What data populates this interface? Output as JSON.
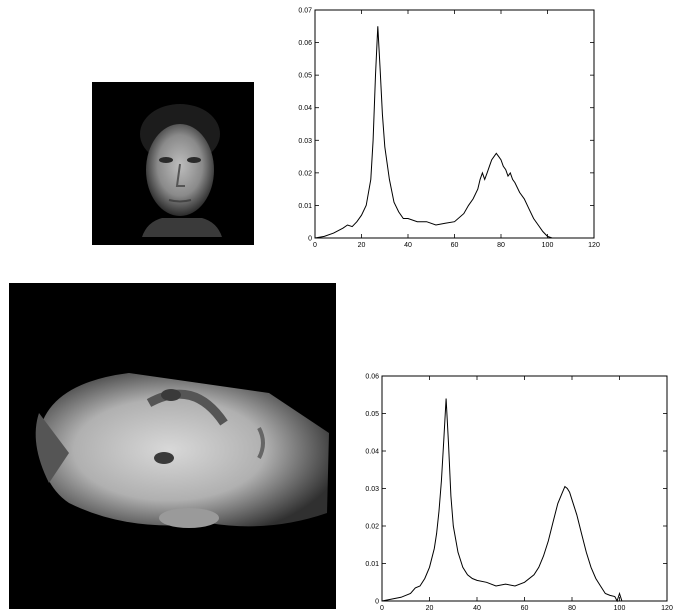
{
  "chart_data": [
    {
      "type": "line",
      "title": "",
      "xlabel": "",
      "ylabel": "",
      "xlim": [
        0,
        120
      ],
      "ylim": [
        0,
        0.07
      ],
      "xticks": [
        "0",
        "20",
        "40",
        "60",
        "80",
        "100",
        "120"
      ],
      "yticks": [
        "0",
        "0.01",
        "0.02",
        "0.03",
        "0.04",
        "0.05",
        "0.06",
        "0.07"
      ],
      "grid": false,
      "series": [
        {
          "x": [
            0,
            4,
            8,
            12,
            14,
            16,
            18,
            20,
            22,
            24,
            25,
            26,
            27,
            28,
            29,
            30,
            32,
            34,
            36,
            38,
            40,
            44,
            48,
            52,
            56,
            60,
            64,
            66,
            68,
            70,
            71,
            72,
            73,
            74,
            75,
            76,
            77,
            78,
            79,
            80,
            81,
            82,
            83,
            84,
            85,
            86,
            88,
            90,
            92,
            94,
            96,
            98,
            100,
            102,
            104,
            108,
            112,
            116,
            120
          ],
          "y": [
            0.0,
            0.0005,
            0.0015,
            0.003,
            0.004,
            0.0035,
            0.005,
            0.007,
            0.01,
            0.018,
            0.03,
            0.05,
            0.065,
            0.052,
            0.038,
            0.028,
            0.018,
            0.011,
            0.008,
            0.006,
            0.006,
            0.005,
            0.005,
            0.004,
            0.0045,
            0.005,
            0.0075,
            0.01,
            0.012,
            0.015,
            0.018,
            0.02,
            0.018,
            0.02,
            0.022,
            0.024,
            0.025,
            0.026,
            0.025,
            0.024,
            0.022,
            0.021,
            0.019,
            0.02,
            0.018,
            0.017,
            0.014,
            0.012,
            0.009,
            0.006,
            0.004,
            0.002,
            0.0005,
            0.0,
            0.0,
            0.0,
            0.0,
            0.0,
            0.0
          ]
        }
      ]
    },
    {
      "type": "line",
      "title": "",
      "xlabel": "",
      "ylabel": "",
      "xlim": [
        0,
        120
      ],
      "ylim": [
        0,
        0.06
      ],
      "xticks": [
        "0",
        "20",
        "40",
        "60",
        "80",
        "100",
        "120"
      ],
      "yticks": [
        "0",
        "0.01",
        "0.02",
        "0.03",
        "0.04",
        "0.05",
        "0.06"
      ],
      "grid": false,
      "series": [
        {
          "x": [
            0,
            4,
            8,
            12,
            14,
            16,
            18,
            20,
            22,
            23,
            24,
            25,
            26,
            27,
            28,
            29,
            30,
            32,
            34,
            36,
            38,
            40,
            44,
            48,
            52,
            56,
            60,
            64,
            66,
            68,
            70,
            72,
            74,
            76,
            77,
            78,
            79,
            80,
            81,
            82,
            84,
            86,
            88,
            90,
            92,
            94,
            96,
            98,
            99,
            100,
            101,
            102,
            104,
            110,
            120
          ],
          "y": [
            0.0,
            0.0005,
            0.001,
            0.002,
            0.0035,
            0.004,
            0.006,
            0.009,
            0.014,
            0.018,
            0.024,
            0.032,
            0.043,
            0.054,
            0.042,
            0.028,
            0.02,
            0.013,
            0.009,
            0.007,
            0.006,
            0.0055,
            0.005,
            0.004,
            0.0045,
            0.004,
            0.005,
            0.007,
            0.009,
            0.012,
            0.016,
            0.021,
            0.026,
            0.029,
            0.0305,
            0.03,
            0.029,
            0.027,
            0.025,
            0.023,
            0.018,
            0.013,
            0.009,
            0.006,
            0.004,
            0.002,
            0.0015,
            0.0012,
            0.0,
            0.002,
            0.0,
            0.0,
            0.0,
            0.0,
            0.0
          ]
        }
      ]
    }
  ]
}
